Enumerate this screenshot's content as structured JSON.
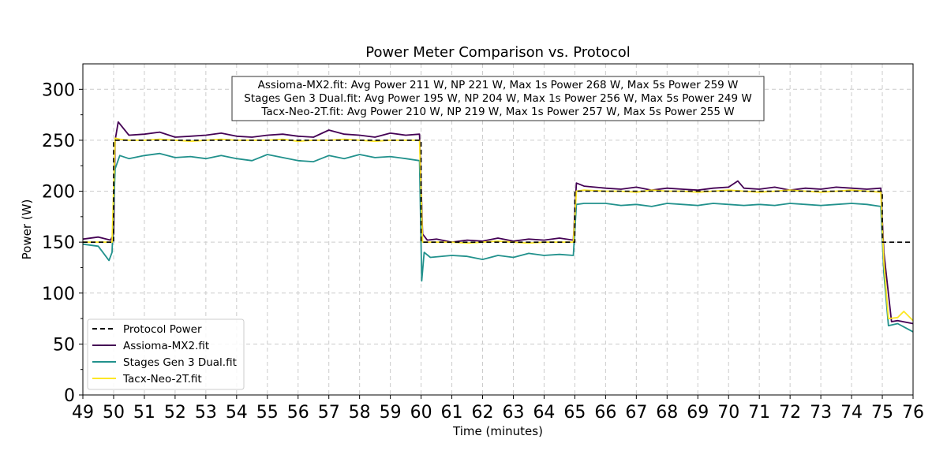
{
  "chart_data": {
    "type": "line",
    "title": "Power Meter Comparison vs. Protocol",
    "xlabel": "Time (minutes)",
    "ylabel": "Power (W)",
    "xlim": [
      49,
      76
    ],
    "ylim": [
      0,
      325
    ],
    "xticks": [
      49,
      50,
      51,
      52,
      53,
      54,
      55,
      56,
      57,
      58,
      59,
      60,
      61,
      62,
      63,
      64,
      65,
      66,
      67,
      68,
      69,
      70,
      71,
      72,
      73,
      74,
      75,
      76
    ],
    "yticks": [
      0,
      50,
      100,
      150,
      200,
      250,
      300
    ],
    "grid": true,
    "legend_position": "lower-left",
    "stats_box": [
      "Assioma-MX2.fit: Avg Power 211 W, NP 221 W, Max 1s Power 268 W, Max 5s Power 259 W",
      "Stages Gen 3 Dual.fit: Avg Power 195 W, NP 204 W, Max 1s Power 256 W, Max 5s Power 249 W",
      "Tacx-Neo-2T.fit: Avg Power 210 W, NP 219 W, Max 1s Power 257 W, Max 5s Power 255 W"
    ],
    "series": [
      {
        "name": "Protocol Power",
        "color": "#000000",
        "style": "dashed",
        "x": [
          49,
          50,
          50,
          60,
          60,
          65,
          65,
          75,
          75,
          76
        ],
        "y": [
          150,
          150,
          250,
          250,
          150,
          150,
          200,
          200,
          150,
          150
        ]
      },
      {
        "name": "Assioma-MX2.fit",
        "color": "#440154",
        "style": "solid",
        "x": [
          49,
          49.5,
          49.9,
          50.0,
          50.05,
          50.15,
          50.5,
          51,
          51.5,
          52,
          52.5,
          53,
          53.5,
          54,
          54.5,
          55,
          55.5,
          56,
          56.5,
          57,
          57.5,
          58,
          58.5,
          59,
          59.5,
          59.95,
          60.05,
          60.2,
          60.5,
          61,
          61.5,
          62,
          62.5,
          63,
          63.5,
          64,
          64.5,
          64.95,
          65.05,
          65.3,
          66,
          66.5,
          67,
          67.5,
          68,
          68.5,
          69,
          69.5,
          70,
          70.3,
          70.5,
          71,
          71.5,
          72,
          72.5,
          73,
          73.5,
          74,
          74.5,
          74.95,
          75.05,
          75.3,
          75.5,
          76
        ],
        "y": [
          153,
          155,
          152,
          158,
          250,
          268,
          255,
          256,
          258,
          253,
          254,
          255,
          257,
          254,
          253,
          255,
          256,
          254,
          253,
          260,
          256,
          255,
          253,
          257,
          255,
          256,
          158,
          152,
          153,
          150,
          152,
          151,
          154,
          151,
          153,
          152,
          154,
          152,
          208,
          205,
          203,
          202,
          204,
          201,
          203,
          202,
          201,
          203,
          204,
          210,
          203,
          202,
          204,
          201,
          203,
          202,
          204,
          203,
          202,
          203,
          140,
          72,
          73,
          70
        ]
      },
      {
        "name": "Stages Gen 3 Dual.fit",
        "color": "#21918c",
        "style": "solid",
        "x": [
          49,
          49.5,
          49.85,
          49.95,
          50.05,
          50.2,
          50.5,
          51,
          51.5,
          52,
          52.5,
          53,
          53.5,
          54,
          54.5,
          55,
          55.5,
          56,
          56.5,
          57,
          57.5,
          58,
          58.5,
          59,
          59.5,
          59.95,
          60.02,
          60.1,
          60.3,
          61,
          61.5,
          62,
          62.5,
          63,
          63.5,
          64,
          64.5,
          64.95,
          65.05,
          65.3,
          66,
          66.5,
          67,
          67.5,
          68,
          68.5,
          69,
          69.5,
          70,
          70.5,
          71,
          71.5,
          72,
          72.5,
          73,
          73.5,
          74,
          74.5,
          74.95,
          75.05,
          75.2,
          75.5,
          76
        ],
        "y": [
          148,
          146,
          132,
          140,
          222,
          235,
          232,
          235,
          237,
          233,
          234,
          232,
          235,
          232,
          230,
          236,
          233,
          230,
          229,
          235,
          232,
          236,
          233,
          234,
          232,
          230,
          112,
          140,
          135,
          137,
          136,
          133,
          137,
          135,
          139,
          137,
          138,
          137,
          187,
          188,
          188,
          186,
          187,
          185,
          188,
          187,
          186,
          188,
          187,
          186,
          187,
          186,
          188,
          187,
          186,
          187,
          188,
          187,
          185,
          120,
          68,
          70,
          62
        ]
      },
      {
        "name": "Tacx-Neo-2T.fit",
        "color": "#fde725",
        "style": "solid",
        "x": [
          49,
          49.5,
          49.95,
          50.05,
          50.2,
          50.5,
          51,
          51.5,
          52,
          52.5,
          53,
          53.5,
          54,
          54.5,
          55,
          55.5,
          56,
          56.5,
          57,
          57.5,
          58,
          58.5,
          59,
          59.5,
          59.95,
          60.05,
          60.3,
          61,
          61.5,
          62,
          62.5,
          63,
          63.5,
          64,
          64.5,
          64.95,
          65.05,
          65.3,
          66,
          66.5,
          67,
          67.5,
          68,
          68.5,
          69,
          69.5,
          70,
          70.5,
          71,
          71.5,
          72,
          72.5,
          73,
          73.5,
          74,
          74.5,
          74.95,
          75.05,
          75.2,
          75.5,
          75.7,
          76
        ],
        "y": [
          150,
          150,
          150,
          252,
          251,
          250,
          250,
          251,
          250,
          249,
          250,
          251,
          250,
          250,
          250,
          251,
          249,
          250,
          250,
          251,
          250,
          249,
          250,
          250,
          250,
          150,
          150,
          150,
          149,
          150,
          151,
          150,
          149,
          150,
          150,
          150,
          200,
          201,
          200,
          200,
          199,
          201,
          200,
          200,
          199,
          200,
          201,
          200,
          199,
          200,
          201,
          200,
          199,
          200,
          201,
          200,
          199,
          130,
          75,
          76,
          82,
          73
        ]
      }
    ]
  }
}
